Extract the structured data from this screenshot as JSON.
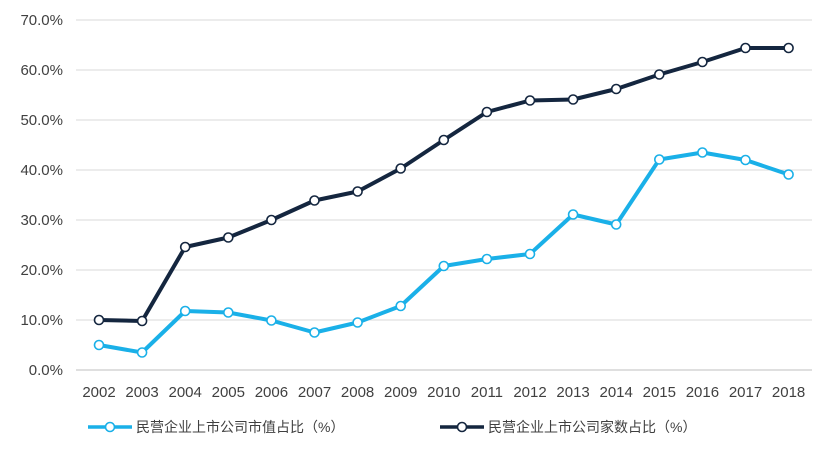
{
  "chart_data": {
    "type": "line",
    "title": "",
    "xlabel": "",
    "ylabel": "",
    "ylim": [
      0,
      70
    ],
    "yticks": [
      0,
      10,
      20,
      30,
      40,
      50,
      60,
      70
    ],
    "ytick_labels": [
      "0.0%",
      "10.0%",
      "20.0%",
      "30.0%",
      "40.0%",
      "50.0%",
      "60.0%",
      "70.0%"
    ],
    "categories": [
      "2002",
      "2003",
      "2004",
      "2005",
      "2006",
      "2007",
      "2008",
      "2009",
      "2010",
      "2011",
      "2012",
      "2013",
      "2014",
      "2015",
      "2016",
      "2017",
      "2018"
    ],
    "grid": true,
    "legend_position": "bottom",
    "series": [
      {
        "name": "民营企业上市公司市值占比（%）",
        "color": "#1ab0e8",
        "values": [
          5.0,
          3.5,
          11.8,
          11.5,
          9.9,
          7.5,
          9.5,
          12.8,
          20.8,
          22.2,
          23.2,
          31.1,
          29.1,
          42.1,
          43.5,
          42.0,
          39.1
        ]
      },
      {
        "name": "民营企业上市公司家数占比（%）",
        "color": "#14263f",
        "values": [
          10.0,
          9.8,
          24.6,
          26.5,
          30.0,
          33.9,
          35.7,
          40.3,
          46.0,
          51.6,
          53.9,
          54.1,
          56.2,
          59.1,
          61.6,
          64.4,
          64.4
        ]
      }
    ]
  }
}
